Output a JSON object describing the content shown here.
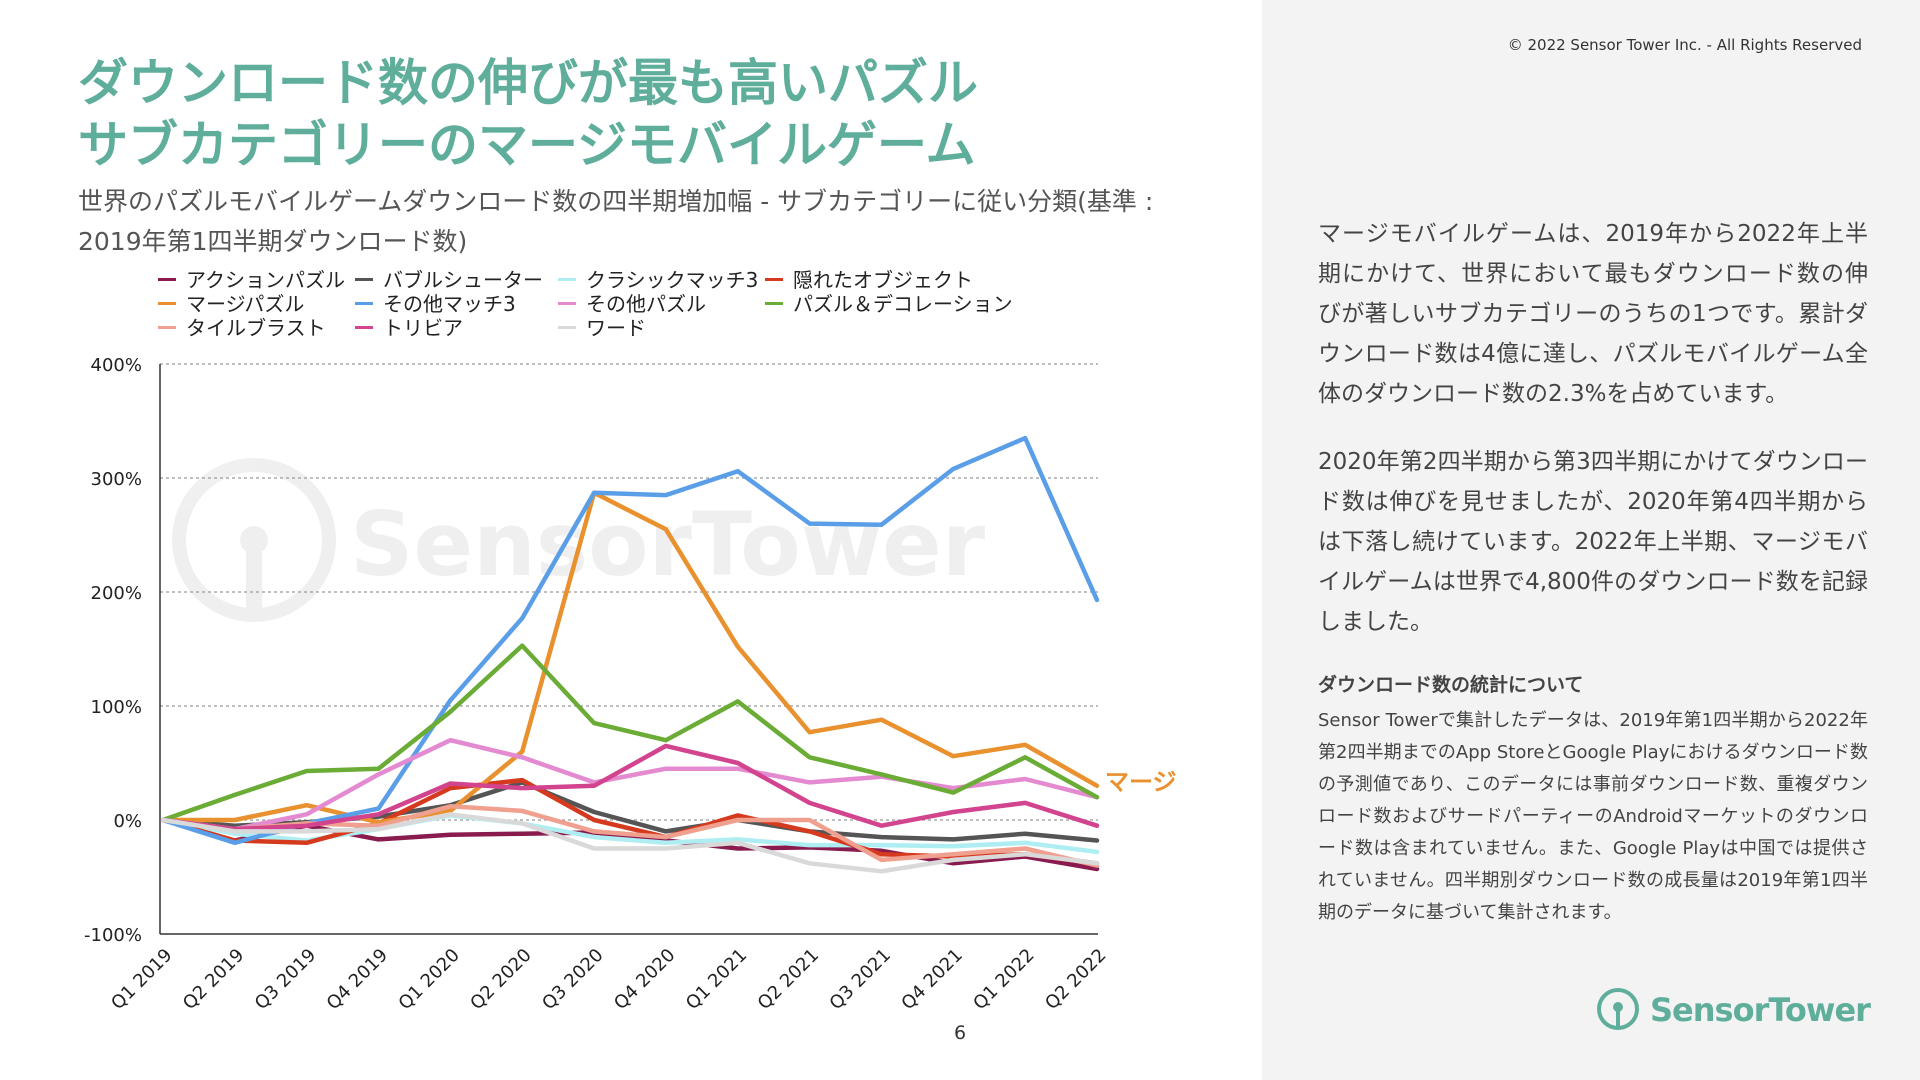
{
  "header": {
    "title_line1": "ダウンロード数の伸びが最も高いパズル",
    "title_line2": "サブカテゴリーのマージモバイルゲーム",
    "subtitle": "世界のパズルモバイルゲームダウンロード数の四半期増加幅 - サブカテゴリーに従い分類(基準 : 2019年第1四半期ダウンロード数)"
  },
  "watermark": "SensorTower",
  "page_number": "6",
  "copyright": "© 2022 Sensor Tower Inc. - All Rights Reserved",
  "description": {
    "para1": "マージモバイルゲームは、2019年から2022年上半期にかけて、世界において最もダウンロード数の伸びが著しいサブカテゴリーのうちの1つです。累計ダウンロード数は4億に達し、パズルモバイルゲーム全体のダウンロード数の2.3%を占めています。",
    "para2": "2020年第2四半期から第3四半期にかけてダウンロード数は伸びを見せましたが、2020年第4四半期からは下落し続けています。2022年上半期、マージモバイルゲームは世界で4,800件のダウンロード数を記録しました。",
    "notes_title": "ダウンロード数の統計について",
    "notes_body": "Sensor Towerで集計したデータは、2019年第1四半期から2022年第2四半期までのApp StoreとGoogle Playにおけるダウンロード数の予測値であり、このデータには事前ダウンロード数、重複ダウンロード数およびサードパーティーのAndroidマーケットのダウンロード数は含まれていません。また、Google Playは中国では提供されていません。四半期別ダウンロード数の成長量は2019年第1四半期のデータに基づいて集計されます。"
  },
  "logo": {
    "text": "SensorTower",
    "icon": "sensor-tower-logo-icon"
  },
  "chart_data": {
    "type": "line",
    "categories": [
      "Q1 2019",
      "Q2 2019",
      "Q3 2019",
      "Q4 2019",
      "Q1 2020",
      "Q2 2020",
      "Q3 2020",
      "Q4 2020",
      "Q1 2021",
      "Q2 2021",
      "Q3 2021",
      "Q4 2021",
      "Q1 2022",
      "Q2 2022"
    ],
    "ylim": [
      -100,
      400
    ],
    "yticks": [
      -100,
      0,
      100,
      200,
      300,
      400
    ],
    "ytick_labels": [
      "-100%",
      "0%",
      "100%",
      "200%",
      "300%",
      "400%"
    ],
    "grid": "horizontal dotted",
    "annotation": {
      "label": "マージ",
      "series": "マージパズル",
      "color": "#e8912e"
    },
    "series": [
      {
        "name": "アクションパズル",
        "color": "#8a1b4e",
        "values": [
          0,
          -18,
          -5,
          -17,
          -13,
          -12,
          -11,
          -18,
          -25,
          -24,
          -27,
          -38,
          -32,
          -43
        ]
      },
      {
        "name": "バブルシューター",
        "color": "#555555",
        "values": [
          0,
          -5,
          -2,
          3,
          13,
          33,
          7,
          -10,
          0,
          -10,
          -15,
          -17,
          -12,
          -18
        ]
      },
      {
        "name": "クラシックマッチ3",
        "color": "#aeeef2",
        "values": [
          0,
          -12,
          -18,
          -8,
          4,
          -3,
          -15,
          -20,
          -17,
          -22,
          -22,
          -23,
          -20,
          -28
        ]
      },
      {
        "name": "隠れたオブジェクト",
        "color": "#d63a1e",
        "values": [
          0,
          -18,
          -20,
          -3,
          28,
          35,
          0,
          -15,
          4,
          -10,
          -30,
          -32,
          -30,
          -38
        ]
      },
      {
        "name": "マージパズル",
        "color": "#e8912e",
        "values": [
          0,
          0,
          13,
          -2,
          8,
          60,
          287,
          255,
          152,
          77,
          88,
          56,
          66,
          30
        ]
      },
      {
        "name": "その他マッチ3",
        "color": "#5b9ee8",
        "values": [
          0,
          -20,
          -3,
          10,
          105,
          177,
          287,
          285,
          306,
          260,
          259,
          308,
          335,
          193
        ]
      },
      {
        "name": "その他パズル",
        "color": "#e38ad0",
        "values": [
          0,
          -8,
          5,
          40,
          70,
          55,
          33,
          45,
          45,
          33,
          38,
          28,
          36,
          20
        ]
      },
      {
        "name": "パズル＆デコレーション",
        "color": "#6aac36",
        "values": [
          0,
          22,
          43,
          45,
          95,
          153,
          85,
          70,
          104,
          55,
          40,
          24,
          55,
          20
        ]
      },
      {
        "name": "タイルブラスト",
        "color": "#efa08f",
        "values": [
          0,
          -8,
          -3,
          -5,
          12,
          8,
          -10,
          -15,
          0,
          0,
          -35,
          -30,
          -25,
          -40
        ]
      },
      {
        "name": "トリビア",
        "color": "#d2448e",
        "values": [
          0,
          -8,
          -5,
          5,
          32,
          28,
          30,
          65,
          50,
          15,
          -5,
          7,
          15,
          -5
        ]
      },
      {
        "name": "ワード",
        "color": "#d9d9d9",
        "values": [
          0,
          -10,
          -10,
          -8,
          5,
          -3,
          -25,
          -25,
          -20,
          -38,
          -45,
          -35,
          -30,
          -38
        ]
      }
    ]
  }
}
